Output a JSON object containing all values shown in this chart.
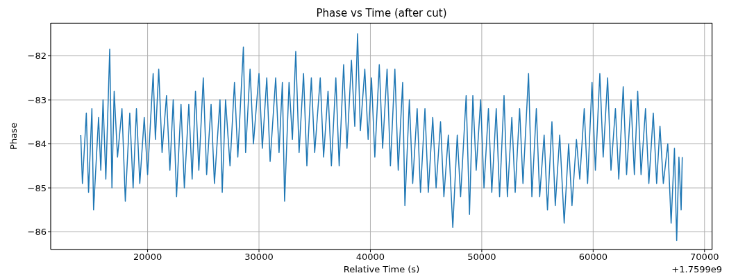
{
  "chart_data": {
    "type": "line",
    "title": "Phase vs Time (after cut)",
    "xlabel": "Relative Time (s)",
    "ylabel": "Phase",
    "annotations": [
      "+1.7599e9"
    ],
    "xlim": [
      11300,
      70700
    ],
    "xticks": [
      20000,
      30000,
      40000,
      50000,
      60000,
      70000
    ],
    "ylim": [
      -86.4,
      -81.25
    ],
    "yticks": [
      -86,
      -85,
      -84,
      -83,
      -82
    ],
    "grid": true,
    "legend": false,
    "marker": "none",
    "line_style": "solid",
    "series": [
      {
        "color": "#1f77b4",
        "x": [
          14000,
          14150,
          14500,
          14700,
          15000,
          15150,
          15600,
          15800,
          16000,
          16250,
          16600,
          16800,
          17000,
          17300,
          17700,
          18000,
          18400,
          18700,
          19000,
          19300,
          19700,
          20000,
          20500,
          20700,
          21000,
          21300,
          21700,
          22000,
          22300,
          22600,
          23000,
          23300,
          23700,
          24000,
          24300,
          24600,
          25000,
          25300,
          25700,
          26000,
          26500,
          26700,
          27000,
          27400,
          27800,
          28100,
          28600,
          28800,
          29200,
          29500,
          30000,
          30300,
          30700,
          31000,
          31500,
          31800,
          32100,
          32300,
          32700,
          33000,
          33300,
          33600,
          34000,
          34300,
          34700,
          35000,
          35500,
          35800,
          36200,
          36500,
          36900,
          37200,
          37600,
          37900,
          38300,
          38600,
          38850,
          39100,
          39500,
          39800,
          40100,
          40400,
          40800,
          41100,
          41500,
          41800,
          42200,
          42500,
          42900,
          43100,
          43500,
          43800,
          44200,
          44500,
          44900,
          45200,
          45600,
          45900,
          46300,
          46600,
          47000,
          47400,
          47800,
          48100,
          48600,
          48900,
          49200,
          49500,
          49900,
          50200,
          50600,
          50900,
          51300,
          51600,
          52000,
          52300,
          52700,
          53000,
          53400,
          53700,
          54200,
          54500,
          54900,
          55200,
          55600,
          55900,
          56300,
          56600,
          57000,
          57400,
          57800,
          58100,
          58500,
          58800,
          59200,
          59500,
          59900,
          60200,
          60600,
          60900,
          61300,
          61600,
          62000,
          62300,
          62700,
          63000,
          63400,
          63700,
          64000,
          64300,
          64700,
          65000,
          65400,
          65700,
          66000,
          66300,
          66700,
          67000,
          67300,
          67500,
          67700,
          67900,
          68000
        ],
        "values": [
          -83.8,
          -84.9,
          -83.3,
          -85.1,
          -83.2,
          -85.5,
          -83.4,
          -84.6,
          -83,
          -84.8,
          -81.85,
          -85,
          -82.8,
          -84.3,
          -83.2,
          -85.3,
          -83.3,
          -85,
          -83.2,
          -84.9,
          -83.4,
          -84.7,
          -82.4,
          -83.9,
          -82.3,
          -84.2,
          -82.9,
          -84.6,
          -83,
          -85.2,
          -83.1,
          -85,
          -83.1,
          -84.8,
          -82.8,
          -84.6,
          -82.5,
          -84.7,
          -83.1,
          -84.9,
          -83,
          -85.1,
          -83,
          -84.5,
          -82.6,
          -84.3,
          -81.8,
          -84.2,
          -82.3,
          -84,
          -82.4,
          -84.1,
          -82.5,
          -84.4,
          -82.5,
          -84.2,
          -82.6,
          -85.3,
          -82.6,
          -83.9,
          -81.9,
          -84.2,
          -82.4,
          -84.5,
          -82.5,
          -84.2,
          -82.5,
          -84.3,
          -82.8,
          -84.5,
          -82.5,
          -84.5,
          -82.2,
          -84.1,
          -82.1,
          -83.6,
          -81.5,
          -83.7,
          -82.3,
          -83.9,
          -82.5,
          -84.3,
          -82.2,
          -84.1,
          -82.3,
          -84.5,
          -82.3,
          -84.6,
          -82.6,
          -85.4,
          -83,
          -84.9,
          -83.2,
          -85.1,
          -83.2,
          -85.1,
          -83.4,
          -85,
          -83.5,
          -85.2,
          -83.8,
          -85.9,
          -83.8,
          -85.2,
          -82.9,
          -85.6,
          -82.9,
          -84.6,
          -83,
          -85,
          -83.2,
          -85.1,
          -83.2,
          -85.2,
          -82.9,
          -85.2,
          -83.4,
          -85.1,
          -83.2,
          -84.9,
          -82.4,
          -85.2,
          -83.2,
          -85.2,
          -83.8,
          -85.5,
          -83.5,
          -85.4,
          -83.8,
          -85.8,
          -84,
          -85.4,
          -83.9,
          -84.8,
          -83.2,
          -84.9,
          -82.6,
          -84.6,
          -82.4,
          -84.3,
          -82.5,
          -84.6,
          -83.2,
          -84.8,
          -82.7,
          -84.7,
          -83,
          -84.7,
          -82.8,
          -84.7,
          -83.2,
          -84.9,
          -83.3,
          -84.9,
          -83.6,
          -84.9,
          -84,
          -85.8,
          -84.1,
          -86.2,
          -84.3,
          -85.5,
          -84.3
        ]
      }
    ]
  }
}
